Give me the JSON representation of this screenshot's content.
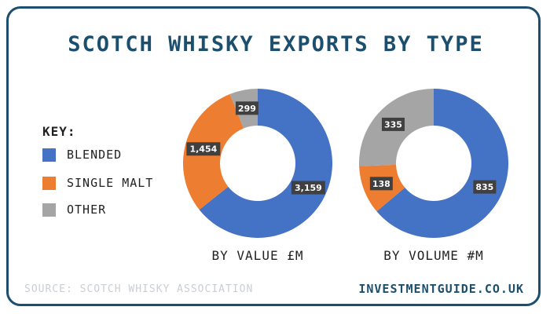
{
  "title": "SCOTCH WHISKY EXPORTS BY TYPE",
  "key": {
    "title": "KEY:",
    "items": [
      {
        "label": "BLENDED",
        "color": "#4472c4"
      },
      {
        "label": "SINGLE MALT",
        "color": "#ed7d31"
      },
      {
        "label": "OTHER",
        "color": "#a5a5a5"
      }
    ]
  },
  "source": "SOURCE: SCOTCH WHISKY ASSOCIATION",
  "site": "INVESTMENTGUIDE.CO.UK",
  "chart_data": [
    {
      "type": "pie",
      "title": "BY VALUE £M",
      "categories": [
        "BLENDED",
        "SINGLE MALT",
        "OTHER"
      ],
      "values": [
        3159,
        1454,
        299
      ],
      "value_labels": [
        "3,159",
        "1,454",
        "299"
      ],
      "colors": [
        "#4472c4",
        "#ed7d31",
        "#a5a5a5"
      ],
      "donut": true
    },
    {
      "type": "pie",
      "title": "BY VOLUME #M",
      "categories": [
        "BLENDED",
        "SINGLE MALT",
        "OTHER"
      ],
      "values": [
        835,
        138,
        335
      ],
      "value_labels": [
        "835",
        "138",
        "335"
      ],
      "colors": [
        "#4472c4",
        "#ed7d31",
        "#a5a5a5"
      ],
      "donut": true
    }
  ]
}
